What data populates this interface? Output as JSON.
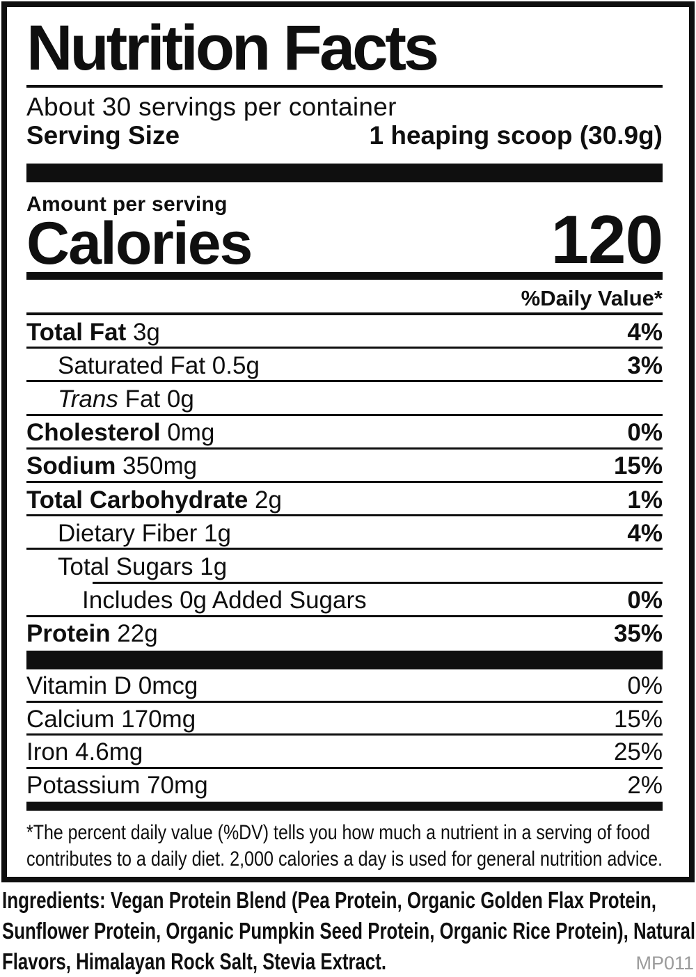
{
  "label": {
    "title": "Nutrition Facts",
    "servings_per_container": "About 30 servings per container",
    "serving_size": {
      "label": "Serving Size",
      "value": "1 heaping scoop (30.9g)"
    },
    "amount_per_serving": "Amount per serving",
    "calories": {
      "label": "Calories",
      "value": "120"
    },
    "daily_value_header": "%Daily Value*",
    "nutrients": [
      {
        "parts": [
          {
            "t": "Total Fat",
            "s": "b"
          },
          {
            "t": " 3g",
            "s": "n"
          }
        ],
        "dv": "4%",
        "dv_style": "b",
        "indent": 0,
        "sep": "full"
      },
      {
        "parts": [
          {
            "t": "Saturated Fat 0.5g",
            "s": "n"
          }
        ],
        "dv": "3%",
        "dv_style": "b",
        "indent": 1,
        "sep": "full"
      },
      {
        "parts": [
          {
            "t": "Trans",
            "s": "i"
          },
          {
            "t": " Fat 0g",
            "s": "n"
          }
        ],
        "dv": "",
        "dv_style": "b",
        "indent": 1,
        "sep": "full"
      },
      {
        "parts": [
          {
            "t": "Cholesterol",
            "s": "b"
          },
          {
            "t": " 0mg",
            "s": "n"
          }
        ],
        "dv": "0%",
        "dv_style": "b",
        "indent": 0,
        "sep": "full"
      },
      {
        "parts": [
          {
            "t": "Sodium",
            "s": "b"
          },
          {
            "t": " 350mg",
            "s": "n"
          }
        ],
        "dv": "15%",
        "dv_style": "b",
        "indent": 0,
        "sep": "full"
      },
      {
        "parts": [
          {
            "t": "Total Carbohydrate",
            "s": "b"
          },
          {
            "t": " 2g",
            "s": "n"
          }
        ],
        "dv": "1%",
        "dv_style": "b",
        "indent": 0,
        "sep": "full"
      },
      {
        "parts": [
          {
            "t": "Dietary Fiber 1g",
            "s": "n"
          }
        ],
        "dv": "4%",
        "dv_style": "b",
        "indent": 1,
        "sep": "full"
      },
      {
        "parts": [
          {
            "t": "Total Sugars 1g",
            "s": "n"
          }
        ],
        "dv": "",
        "dv_style": "b",
        "indent": 1,
        "sep": "indent"
      },
      {
        "parts": [
          {
            "t": "Includes 0g Added Sugars",
            "s": "n"
          }
        ],
        "dv": "0%",
        "dv_style": "b",
        "indent": 2,
        "sep": "full"
      },
      {
        "parts": [
          {
            "t": "Protein",
            "s": "b"
          },
          {
            "t": " 22g",
            "s": "n"
          }
        ],
        "dv": "35%",
        "dv_style": "b",
        "indent": 0,
        "sep": "none"
      }
    ],
    "vitamins": [
      {
        "parts": [
          {
            "t": "Vitamin D 0mcg",
            "s": "n"
          }
        ],
        "dv": "0%",
        "dv_style": "n",
        "indent": 0,
        "sep": "full"
      },
      {
        "parts": [
          {
            "t": "Calcium 170mg",
            "s": "n"
          }
        ],
        "dv": "15%",
        "dv_style": "n",
        "indent": 0,
        "sep": "full"
      },
      {
        "parts": [
          {
            "t": "Iron 4.6mg",
            "s": "n"
          }
        ],
        "dv": "25%",
        "dv_style": "n",
        "indent": 0,
        "sep": "full"
      },
      {
        "parts": [
          {
            "t": "Potassium 70mg",
            "s": "n"
          }
        ],
        "dv": "2%",
        "dv_style": "n",
        "indent": 0,
        "sep": "none"
      }
    ],
    "footnote_lines": [
      "*The percent daily value (%DV) tells you how much a nutrient in a serving of food",
      "contributes to a daily diet. 2,000 calories a day is used for general nutrition advice."
    ]
  },
  "ingredients_lines": [
    "Ingredients: Vegan Protein Blend (Pea Protein, Organic Golden Flax Protein,",
    "Sunflower Protein, Organic Pumpkin Seed Protein, Organic Rice Protein), Natural",
    "Flavors, Himalayan Rock Salt, Stevia Extract."
  ],
  "product_code": "MP011",
  "colors": {
    "text": "#0f0f0f",
    "muted": "#9b9b9b"
  }
}
